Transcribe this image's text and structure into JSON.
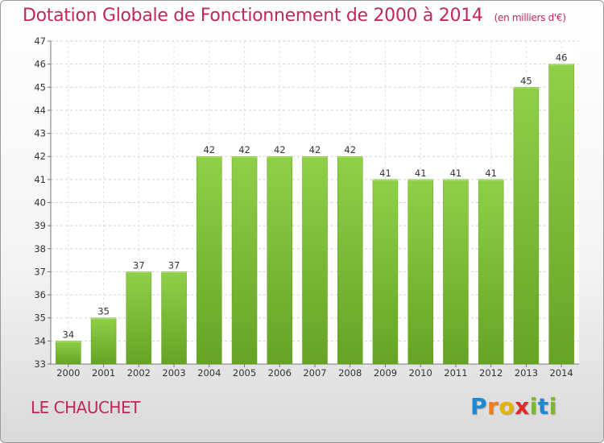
{
  "title": "Dotation Globale de Fonctionnement de 2000 à 2014",
  "subtitle": "(en milliers d'€)",
  "commune": "LE CHAUCHET",
  "logo": {
    "text": "Proxiti",
    "letter_colors": [
      "#1e88d6",
      "#f07c1a",
      "#e8b300",
      "#e02a2a",
      "#7ab82c",
      "#1e88d6",
      "#7ab82c"
    ]
  },
  "colors": {
    "bar": "#7dc03a",
    "bar_dark": "#5f9e1e",
    "title": "#c0275b"
  },
  "chart_data": {
    "type": "bar",
    "categories": [
      "2000",
      "2001",
      "2002",
      "2003",
      "2004",
      "2005",
      "2006",
      "2007",
      "2008",
      "2009",
      "2010",
      "2011",
      "2012",
      "2013",
      "2014"
    ],
    "values": [
      34,
      35,
      37,
      37,
      42,
      42,
      42,
      42,
      42,
      41,
      41,
      41,
      41,
      45,
      46
    ],
    "ylim": [
      33,
      47
    ],
    "yticks": [
      33,
      34,
      35,
      36,
      37,
      38,
      39,
      40,
      41,
      42,
      43,
      44,
      45,
      46,
      47
    ],
    "grid": true,
    "xlabel": "",
    "ylabel": ""
  }
}
